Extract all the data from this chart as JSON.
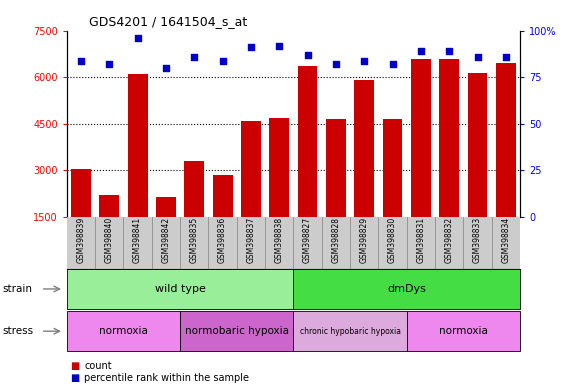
{
  "title": "GDS4201 / 1641504_s_at",
  "samples": [
    "GSM398839",
    "GSM398840",
    "GSM398841",
    "GSM398842",
    "GSM398835",
    "GSM398836",
    "GSM398837",
    "GSM398838",
    "GSM398827",
    "GSM398828",
    "GSM398829",
    "GSM398830",
    "GSM398831",
    "GSM398832",
    "GSM398833",
    "GSM398834"
  ],
  "counts": [
    3050,
    2200,
    6100,
    2150,
    3300,
    2850,
    4600,
    4700,
    6350,
    4650,
    5900,
    4650,
    6600,
    6600,
    6150,
    6450
  ],
  "percentile_ranks": [
    84,
    82,
    96,
    80,
    86,
    84,
    91,
    92,
    87,
    82,
    84,
    82,
    89,
    89,
    86,
    86
  ],
  "bar_color": "#cc0000",
  "dot_color": "#0000cc",
  "ylim_left": [
    1500,
    7500
  ],
  "ylim_right": [
    0,
    100
  ],
  "yticks_left": [
    1500,
    3000,
    4500,
    6000,
    7500
  ],
  "yticks_right": [
    0,
    25,
    50,
    75,
    100
  ],
  "grid_dotted_vals": [
    3000,
    4500,
    6000
  ],
  "strain_groups": [
    {
      "label": "wild type",
      "start": 0,
      "end": 8,
      "color": "#99ee99"
    },
    {
      "label": "dmDys",
      "start": 8,
      "end": 16,
      "color": "#44dd44"
    }
  ],
  "stress_groups": [
    {
      "label": "normoxia",
      "start": 0,
      "end": 4,
      "color": "#ee88ee"
    },
    {
      "label": "normobaric hypoxia",
      "start": 4,
      "end": 8,
      "color": "#cc66cc"
    },
    {
      "label": "chronic hypobaric hypoxia",
      "start": 8,
      "end": 12,
      "color": "#ddaadd"
    },
    {
      "label": "normoxia",
      "start": 12,
      "end": 16,
      "color": "#ee88ee"
    }
  ],
  "strain_label": "strain",
  "stress_label": "stress",
  "legend_count_label": "count",
  "legend_pct_label": "percentile rank within the sample",
  "bg_color": "#ffffff",
  "xtick_bg_color": "#cccccc"
}
